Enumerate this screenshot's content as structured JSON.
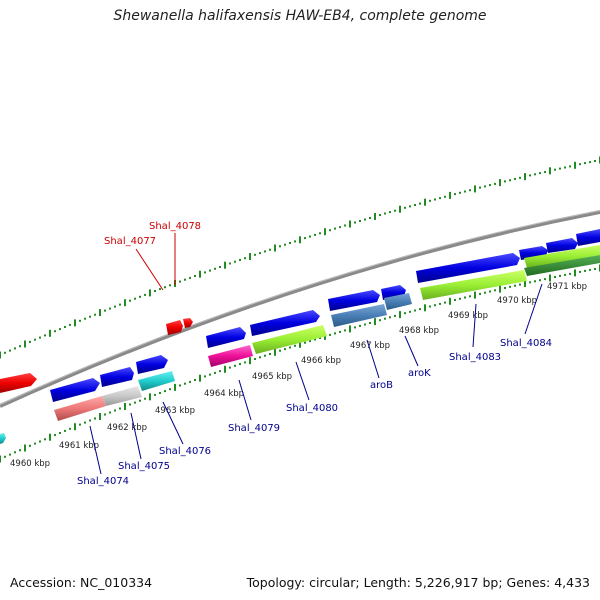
{
  "title": "Shewanella halifaxensis HAW-EB4, complete genome",
  "footer": {
    "accession": "Accession: NC_010334",
    "stats": "Topology: circular; Length: 5,226,917 bp; Genes: 4,433"
  },
  "colors": {
    "backbone": "#808080",
    "tick_green": "#228b22",
    "label_blue": "#00008b",
    "label_red": "#cc0000"
  },
  "kbp_labels": [
    "4960 kbp",
    "4961 kbp",
    "4962 kbp",
    "4963 kbp",
    "4964 kbp",
    "4965 kbp",
    "4966 kbp",
    "4967 kbp",
    "4968 kbp",
    "4969 kbp",
    "4970 kbp",
    "4971 kbp"
  ],
  "gene_labels": [
    {
      "text": "Shal_4074",
      "color": "blue"
    },
    {
      "text": "Shal_4075",
      "color": "blue"
    },
    {
      "text": "Shal_4076",
      "color": "blue"
    },
    {
      "text": "Shal_4077",
      "color": "red"
    },
    {
      "text": "Shal_4078",
      "color": "red"
    },
    {
      "text": "Shal_4079",
      "color": "blue"
    },
    {
      "text": "Shal_4080",
      "color": "blue"
    },
    {
      "text": "aroB",
      "color": "blue"
    },
    {
      "text": "aroK",
      "color": "blue"
    },
    {
      "text": "Shal_4083",
      "color": "blue"
    },
    {
      "text": "Shal_4084",
      "color": "blue"
    }
  ]
}
